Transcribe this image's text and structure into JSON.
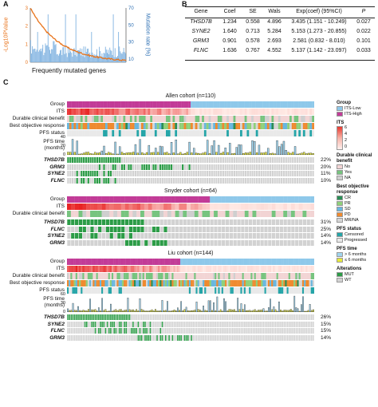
{
  "panels": {
    "a": "A",
    "b": "B",
    "c": "C"
  },
  "panel_a": {
    "ylabel_left": "-Log10PValue",
    "ylabel_right": "Mutation rate (%)",
    "xlabel": "Frequently mutated genes",
    "left_ticks": [
      "0",
      "1",
      "2",
      "3"
    ],
    "right_ticks": [
      "10",
      "30",
      "50",
      "70"
    ],
    "colors": {
      "bars": "#7fb2e0",
      "line": "#e8731a"
    }
  },
  "panel_b": {
    "headers": [
      "Gene",
      "Coef",
      "SE",
      "Wals",
      "Exp(coef) (95%CI)",
      "P"
    ],
    "rows": [
      [
        "THSD7B",
        "1.234",
        "0.558",
        "4.896",
        "3.435 (1.151 - 10.249)",
        "0.027"
      ],
      [
        "SYNE2",
        "1.640",
        "0.713",
        "5.284",
        "5.153 (1.273 - 20.855)",
        "0.022"
      ],
      [
        "GRM3",
        "0.901",
        "0.578",
        "2.693",
        "2.581 (0.832 - 8.010)",
        "0.101"
      ],
      [
        "FLNC",
        "1.636",
        "0.767",
        "4.552",
        "5.137 (1.142 - 23.097)",
        "0.033"
      ]
    ]
  },
  "cohorts": [
    {
      "title": "Allen cohort (n=110)",
      "labels": [
        "Group",
        "ITS",
        "Durable clinical benefit",
        "Best objective response",
        "PFS status",
        "PFS time\n(months)"
      ],
      "pfs_ticks": [
        "40",
        "20",
        "0"
      ],
      "genes": [
        "THSD7B",
        "GRM3",
        "SYNE2",
        "FLNC"
      ],
      "pcts": [
        "22%",
        "20%",
        "11%",
        "10%"
      ]
    },
    {
      "title": "Snyder cohort (n=64)",
      "labels": [
        "Group",
        "ITS",
        "Durable clinical benefit"
      ],
      "genes": [
        "THSD7B",
        "FLNC",
        "SYNE2",
        "GRM3"
      ],
      "pcts": [
        "31%",
        "25%",
        "14%",
        "14%"
      ]
    },
    {
      "title": "Liu cohort (n=144)",
      "labels": [
        "Group",
        "ITS",
        "Durable clinical benefit",
        "Best objective response",
        "PFS status",
        "PFS time\n(months)"
      ],
      "pfs_ticks": [
        "60",
        "30",
        "0"
      ],
      "genes": [
        "THSD7B",
        "SYNE2",
        "FLNC",
        "GRM3"
      ],
      "pcts": [
        "26%",
        "15%",
        "15%",
        "14%"
      ]
    }
  ],
  "legend": {
    "group_title": "Group",
    "group_items": [
      "ITS-Low",
      "ITS-High"
    ],
    "its_title": "ITS",
    "its_ticks": [
      "6",
      "4",
      "2",
      "0"
    ],
    "dcb_title": "Durable clinical\nbenefit",
    "dcb_items": [
      "No",
      "Yes",
      "NA"
    ],
    "bor_title": "Best objective\nresponse",
    "bor_items": [
      "CR",
      "PR",
      "SD",
      "PD",
      "MR/NA"
    ],
    "pfs_status_title": "PFS status",
    "pfs_status_items": [
      "Censored",
      "Progressed"
    ],
    "pfs_time_title": "PFS time",
    "pfs_time_items": [
      "> 6 months",
      "≤ 6 months"
    ],
    "alt_title": "Alterations",
    "alt_items": [
      "MUT",
      "WT"
    ]
  },
  "colors": {
    "its_low": "#8ec8ea",
    "its_high": "#c23b97",
    "its_scale": "#e83a30",
    "dcb_no": "#f2d4d4",
    "dcb_yes": "#77c47f",
    "dcb_na": "#cfcfcf",
    "bor_cr": "#2a8e56",
    "bor_pr": "#8fd07a",
    "bor_sd": "#69b7df",
    "bor_pd": "#ef8a2f",
    "bor_mr": "#d6d6d6",
    "pfs_censored": "#25a5a8",
    "pfs_progressed": "#e9e9e9",
    "time_gt": "#9fd5ee",
    "time_le": "#e7ea3c",
    "mut": "#2c9c47",
    "wt": "#d2d2d2"
  }
}
